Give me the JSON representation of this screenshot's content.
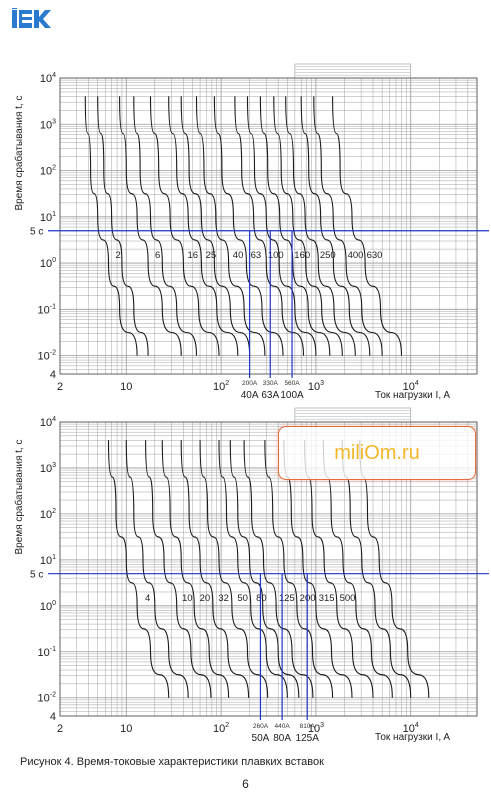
{
  "brand": {
    "logo_text": "IEK",
    "logo_color": "#2a7ad0"
  },
  "watermark": {
    "text": "miliOm.ru",
    "text_color": "#f2b72a",
    "border_color": "#e66a3a"
  },
  "caption": "Рисунок 4.  Время-токовые характеристики плавких вставок",
  "page_number": "6",
  "colors": {
    "curve": "#1a1a1a",
    "grid": "#9a9a9a",
    "marker": "#1f34c9"
  },
  "chart_data": [
    {
      "type": "line",
      "xscale": "log",
      "yscale": "log",
      "xlim": [
        2,
        50000
      ],
      "ylim": [
        0.004,
        10000
      ],
      "xlabel": "Ток нагрузки I, A",
      "ylabel": "Время срабатывания  t, c",
      "x_ticks": [
        {
          "v": 2,
          "t": "2"
        },
        {
          "v": 10,
          "t": "10"
        },
        {
          "v": 100,
          "t": "10",
          "sup": "2"
        },
        {
          "v": 1000,
          "t": "10",
          "sup": "3"
        },
        {
          "v": 10000,
          "t": "10",
          "sup": "4"
        }
      ],
      "y_ticks": [
        {
          "v": 10000,
          "t": "10",
          "sup": "4"
        },
        {
          "v": 1000,
          "t": "10",
          "sup": "3"
        },
        {
          "v": 100,
          "t": "10",
          "sup": "2"
        },
        {
          "v": 10,
          "t": "10",
          "sup": "1"
        },
        {
          "v": 1,
          "t": "10",
          "sup": "0"
        },
        {
          "v": 0.1,
          "t": "10",
          "sup": "-1"
        },
        {
          "v": 0.01,
          "t": "10",
          "sup": "-2"
        },
        {
          "v": 0.004,
          "t": "4",
          "sup": ""
        }
      ],
      "curves": [
        {
          "label": "2",
          "x": [
            3.7,
            4.2,
            5,
            6.5,
            8.5,
            13
          ],
          "y": [
            4000,
            100,
            10,
            1,
            0.1,
            0.01
          ]
        },
        {
          "label": "",
          "x": [
            5,
            5.8,
            7,
            9,
            12,
            17
          ],
          "y": [
            4000,
            100,
            10,
            1,
            0.1,
            0.01
          ]
        },
        {
          "label": "6",
          "x": [
            8.5,
            10,
            13,
            17,
            24,
            38
          ],
          "y": [
            4000,
            100,
            10,
            1,
            0.1,
            0.01
          ]
        },
        {
          "label": "",
          "x": [
            12,
            14,
            18,
            24,
            34,
            55
          ],
          "y": [
            4000,
            100,
            10,
            1,
            0.1,
            0.01
          ]
        },
        {
          "label": "16",
          "x": [
            18,
            22,
            29,
            40,
            58,
            95
          ],
          "y": [
            4000,
            100,
            10,
            1,
            0.1,
            0.01
          ]
        },
        {
          "label": "25",
          "x": [
            28,
            34,
            45,
            62,
            90,
            150
          ],
          "y": [
            4000,
            100,
            10,
            1,
            0.1,
            0.01
          ]
        },
        {
          "label": "",
          "x": [
            38,
            46,
            62,
            85,
            125,
            200
          ],
          "y": [
            4000,
            100,
            10,
            1,
            0.1,
            0.01
          ]
        },
        {
          "label": "40",
          "x": [
            55,
            66,
            88,
            120,
            175,
            290
          ],
          "y": [
            4000,
            100,
            10,
            1,
            0.1,
            0.01
          ]
        },
        {
          "label": "63",
          "x": [
            85,
            102,
            135,
            185,
            270,
            450
          ],
          "y": [
            4000,
            100,
            10,
            1,
            0.1,
            0.01
          ]
        },
        {
          "label": "100",
          "x": [
            140,
            165,
            220,
            300,
            440,
            740
          ],
          "y": [
            4000,
            100,
            10,
            1,
            0.1,
            0.01
          ]
        },
        {
          "label": "",
          "x": [
            190,
            225,
            300,
            410,
            600,
            1000
          ],
          "y": [
            4000,
            100,
            10,
            1,
            0.1,
            0.01
          ]
        },
        {
          "label": "160",
          "x": [
            260,
            310,
            415,
            570,
            830,
            1400
          ],
          "y": [
            4000,
            100,
            10,
            1,
            0.1,
            0.01
          ]
        },
        {
          "label": "",
          "x": [
            360,
            430,
            570,
            780,
            1150,
            1900
          ],
          "y": [
            4000,
            100,
            10,
            1,
            0.1,
            0.01
          ]
        },
        {
          "label": "250",
          "x": [
            480,
            580,
            770,
            1060,
            1550,
            2600
          ],
          "y": [
            4000,
            100,
            10,
            1,
            0.1,
            0.01
          ]
        },
        {
          "label": "",
          "x": [
            700,
            840,
            1120,
            1530,
            2250,
            3700
          ],
          "y": [
            4000,
            100,
            10,
            1,
            0.1,
            0.01
          ]
        },
        {
          "label": "400",
          "x": [
            950,
            1140,
            1520,
            2080,
            3050,
            5000
          ],
          "y": [
            4000,
            100,
            10,
            1,
            0.1,
            0.01
          ]
        },
        {
          "label": "630",
          "x": [
            1500,
            1800,
            2400,
            3300,
            4800,
            8000
          ],
          "y": [
            4000,
            100,
            10,
            1,
            0.1,
            0.01
          ]
        }
      ],
      "extra_curve_labels": [],
      "reference_line": {
        "y": 5,
        "label": "5 c"
      },
      "markers": [
        {
          "x": 200,
          "amp_label": "200A",
          "rating_label": "40A"
        },
        {
          "x": 330,
          "amp_label": "330A",
          "rating_label": "63A"
        },
        {
          "x": 560,
          "amp_label": "560A",
          "rating_label": "100A"
        }
      ]
    },
    {
      "type": "line",
      "xscale": "log",
      "yscale": "log",
      "xlim": [
        2,
        50000
      ],
      "ylim": [
        0.004,
        10000
      ],
      "xlabel": "Ток нагрузки I, A",
      "ylabel": "Время срабатывания  t, c",
      "x_ticks": [
        {
          "v": 2,
          "t": "2"
        },
        {
          "v": 10,
          "t": "10"
        },
        {
          "v": 100,
          "t": "10",
          "sup": "2"
        },
        {
          "v": 1000,
          "t": "10",
          "sup": "3"
        },
        {
          "v": 10000,
          "t": "10",
          "sup": "4"
        }
      ],
      "y_ticks": [
        {
          "v": 10000,
          "t": "10",
          "sup": "4"
        },
        {
          "v": 1000,
          "t": "10",
          "sup": "3"
        },
        {
          "v": 100,
          "t": "10",
          "sup": "2"
        },
        {
          "v": 10,
          "t": "10",
          "sup": "1"
        },
        {
          "v": 1,
          "t": "10",
          "sup": "0"
        },
        {
          "v": 0.1,
          "t": "10",
          "sup": "-1"
        },
        {
          "v": 0.01,
          "t": "10",
          "sup": "-2"
        },
        {
          "v": 0.004,
          "t": "4",
          "sup": ""
        }
      ],
      "curves": [
        {
          "label": "4",
          "x": [
            6.5,
            7.8,
            10,
            13,
            18,
            28
          ],
          "y": [
            4000,
            100,
            10,
            1,
            0.1,
            0.01
          ]
        },
        {
          "label": "",
          "x": [
            10,
            12,
            15,
            20,
            28,
            45
          ],
          "y": [
            4000,
            100,
            10,
            1,
            0.1,
            0.01
          ]
        },
        {
          "label": "10",
          "x": [
            16,
            19,
            25,
            34,
            48,
            78
          ],
          "y": [
            4000,
            100,
            10,
            1,
            0.1,
            0.01
          ]
        },
        {
          "label": "20",
          "x": [
            24,
            29,
            38,
            52,
            75,
            120
          ],
          "y": [
            4000,
            100,
            10,
            1,
            0.1,
            0.01
          ]
        },
        {
          "label": "32",
          "x": [
            38,
            46,
            60,
            82,
            118,
            195
          ],
          "y": [
            4000,
            100,
            10,
            1,
            0.1,
            0.01
          ]
        },
        {
          "label": "50",
          "x": [
            60,
            72,
            95,
            130,
            190,
            310
          ],
          "y": [
            4000,
            100,
            10,
            1,
            0.1,
            0.01
          ]
        },
        {
          "label": "80",
          "x": [
            95,
            114,
            150,
            205,
            300,
            500
          ],
          "y": [
            4000,
            100,
            10,
            1,
            0.1,
            0.01
          ]
        },
        {
          "label": "",
          "x": [
            125,
            150,
            200,
            275,
            400,
            660
          ],
          "y": [
            4000,
            100,
            10,
            1,
            0.1,
            0.01
          ]
        },
        {
          "label": "125",
          "x": [
            175,
            210,
            280,
            380,
            560,
            930
          ],
          "y": [
            4000,
            100,
            10,
            1,
            0.1,
            0.01
          ]
        },
        {
          "label": "200",
          "x": [
            290,
            350,
            460,
            630,
            920,
            1500
          ],
          "y": [
            4000,
            100,
            10,
            1,
            0.1,
            0.01
          ]
        },
        {
          "label": "315",
          "x": [
            460,
            550,
            730,
            1000,
            1460,
            2400
          ],
          "y": [
            4000,
            100,
            10,
            1,
            0.1,
            0.01
          ]
        },
        {
          "label": "500",
          "x": [
            760,
            910,
            1220,
            1660,
            2430,
            4000
          ],
          "y": [
            4000,
            100,
            10,
            1,
            0.1,
            0.01
          ]
        },
        {
          "label": "",
          "x": [
            1200,
            1450,
            1930,
            2640,
            3850,
            6400
          ],
          "y": [
            4000,
            100,
            10,
            1,
            0.1,
            0.01
          ]
        },
        {
          "label": "",
          "x": [
            1900,
            2300,
            3050,
            4200,
            6100,
            10000
          ],
          "y": [
            4000,
            100,
            10,
            1,
            0.1,
            0.01
          ]
        },
        {
          "label": "",
          "x": [
            2900,
            3500,
            4650,
            6350,
            9300,
            15500
          ],
          "y": [
            4000,
            100,
            10,
            1,
            0.1,
            0.01
          ]
        }
      ],
      "reference_line": {
        "y": 5,
        "label": "5 c"
      },
      "markers": [
        {
          "x": 260,
          "amp_label": "260A",
          "rating_label": "50A"
        },
        {
          "x": 440,
          "amp_label": "440A",
          "rating_label": "80A"
        },
        {
          "x": 810,
          "amp_label": "810A",
          "rating_label": "125A"
        }
      ]
    }
  ]
}
